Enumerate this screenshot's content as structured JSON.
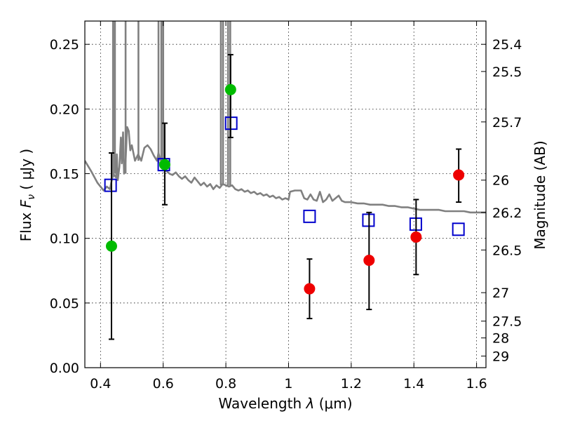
{
  "chart_data": {
    "type": "scatter",
    "xlabel_prefix": "Wavelength",
    "xlabel_var": "λ",
    "xlabel_unit": "(μm)",
    "ylabel_prefix": "Flux",
    "ylabel_var": "F",
    "ylabel_sub": "ν",
    "ylabel_unit": "( μJy )",
    "y2label": "Magnitude (AB)",
    "xlim": [
      0.35,
      1.63
    ],
    "ylim": [
      0.0,
      0.268
    ],
    "grid": true,
    "x_ticks": [
      0.4,
      0.6,
      0.8,
      1.0,
      1.2,
      1.4,
      1.6
    ],
    "x_tick_labels": [
      "0.4",
      "0.6",
      "0.8",
      "1",
      "1.2",
      "1.4",
      "1.6"
    ],
    "y_ticks": [
      0.0,
      0.05,
      0.1,
      0.15,
      0.2,
      0.25
    ],
    "y_tick_labels": [
      "0.00",
      "0.05",
      "0.10",
      "0.15",
      "0.20",
      "0.25"
    ],
    "mag_ticks": [
      {
        "label": "25.4",
        "flux": 0.25
      },
      {
        "label": "25.5",
        "flux": 0.229
      },
      {
        "label": "25.7",
        "flux": 0.19
      },
      {
        "label": "26",
        "flux": 0.145
      },
      {
        "label": "26.2",
        "flux": 0.12
      },
      {
        "label": "26.5",
        "flux": 0.091
      },
      {
        "label": "27",
        "flux": 0.058
      },
      {
        "label": "27.5",
        "flux": 0.036
      },
      {
        "label": "28",
        "flux": 0.023
      },
      {
        "label": "29",
        "flux": 0.009
      }
    ],
    "series": [
      {
        "name": "model spectrum",
        "kind": "line",
        "color": "#808080",
        "points": [
          [
            0.35,
            0.16
          ],
          [
            0.37,
            0.152
          ],
          [
            0.39,
            0.143
          ],
          [
            0.41,
            0.137
          ],
          [
            0.42,
            0.14
          ],
          [
            0.43,
            0.138
          ],
          [
            0.44,
            0.15
          ],
          [
            0.45,
            0.147
          ],
          [
            0.452,
            0.165
          ],
          [
            0.455,
            0.145
          ],
          [
            0.46,
            0.155
          ],
          [
            0.465,
            0.178
          ],
          [
            0.468,
            0.158
          ],
          [
            0.472,
            0.182
          ],
          [
            0.475,
            0.15
          ],
          [
            0.48,
            0.16
          ],
          [
            0.485,
            0.186
          ],
          [
            0.49,
            0.183
          ],
          [
            0.495,
            0.168
          ],
          [
            0.5,
            0.172
          ],
          [
            0.51,
            0.16
          ],
          [
            0.52,
            0.165
          ],
          [
            0.53,
            0.16
          ],
          [
            0.54,
            0.17
          ],
          [
            0.55,
            0.172
          ],
          [
            0.56,
            0.169
          ],
          [
            0.57,
            0.164
          ],
          [
            0.58,
            0.16
          ],
          [
            0.585,
            0.166
          ],
          [
            0.59,
            0.161
          ],
          [
            0.6,
            0.158
          ],
          [
            0.61,
            0.152
          ],
          [
            0.62,
            0.15
          ],
          [
            0.63,
            0.149
          ],
          [
            0.64,
            0.151
          ],
          [
            0.65,
            0.148
          ],
          [
            0.66,
            0.146
          ],
          [
            0.67,
            0.148
          ],
          [
            0.68,
            0.145
          ],
          [
            0.69,
            0.143
          ],
          [
            0.7,
            0.147
          ],
          [
            0.71,
            0.144
          ],
          [
            0.72,
            0.141
          ],
          [
            0.73,
            0.143
          ],
          [
            0.74,
            0.14
          ],
          [
            0.75,
            0.142
          ],
          [
            0.76,
            0.138
          ],
          [
            0.77,
            0.141
          ],
          [
            0.78,
            0.139
          ],
          [
            0.79,
            0.142
          ],
          [
            0.8,
            0.141
          ],
          [
            0.81,
            0.14
          ],
          [
            0.82,
            0.141
          ],
          [
            0.83,
            0.138
          ],
          [
            0.84,
            0.137
          ],
          [
            0.85,
            0.138
          ],
          [
            0.86,
            0.136
          ],
          [
            0.87,
            0.137
          ],
          [
            0.88,
            0.135
          ],
          [
            0.89,
            0.136
          ],
          [
            0.9,
            0.134
          ],
          [
            0.91,
            0.135
          ],
          [
            0.92,
            0.133
          ],
          [
            0.93,
            0.134
          ],
          [
            0.94,
            0.132
          ],
          [
            0.95,
            0.133
          ],
          [
            0.96,
            0.131
          ],
          [
            0.97,
            0.132
          ],
          [
            0.98,
            0.13
          ],
          [
            0.99,
            0.131
          ],
          [
            1.0,
            0.13
          ],
          [
            1.005,
            0.136
          ],
          [
            1.02,
            0.137
          ],
          [
            1.04,
            0.137
          ],
          [
            1.05,
            0.131
          ],
          [
            1.06,
            0.13
          ],
          [
            1.07,
            0.134
          ],
          [
            1.08,
            0.13
          ],
          [
            1.09,
            0.129
          ],
          [
            1.1,
            0.136
          ],
          [
            1.11,
            0.128
          ],
          [
            1.12,
            0.13
          ],
          [
            1.13,
            0.134
          ],
          [
            1.14,
            0.129
          ],
          [
            1.15,
            0.131
          ],
          [
            1.16,
            0.133
          ],
          [
            1.17,
            0.129
          ],
          [
            1.18,
            0.128
          ],
          [
            1.2,
            0.128
          ],
          [
            1.22,
            0.127
          ],
          [
            1.24,
            0.127
          ],
          [
            1.26,
            0.126
          ],
          [
            1.28,
            0.126
          ],
          [
            1.3,
            0.126
          ],
          [
            1.32,
            0.125
          ],
          [
            1.34,
            0.125
          ],
          [
            1.36,
            0.124
          ],
          [
            1.38,
            0.124
          ],
          [
            1.4,
            0.123
          ],
          [
            1.42,
            0.122
          ],
          [
            1.44,
            0.122
          ],
          [
            1.46,
            0.122
          ],
          [
            1.48,
            0.122
          ],
          [
            1.5,
            0.121
          ],
          [
            1.52,
            0.121
          ],
          [
            1.54,
            0.121
          ],
          [
            1.56,
            0.121
          ],
          [
            1.58,
            0.12
          ],
          [
            1.6,
            0.12
          ],
          [
            1.63,
            0.12
          ]
        ]
      },
      {
        "name": "model emission lines",
        "kind": "vlines",
        "color": "#808080",
        "lines": [
          {
            "x": 0.44,
            "y0": 0.147,
            "y1": 0.268
          },
          {
            "x": 0.446,
            "y0": 0.15,
            "y1": 0.268
          },
          {
            "x": 0.48,
            "y0": 0.15,
            "y1": 0.268
          },
          {
            "x": 0.521,
            "y0": 0.16,
            "y1": 0.268
          },
          {
            "x": 0.585,
            "y0": 0.158,
            "y1": 0.268
          },
          {
            "x": 0.594,
            "y0": 0.158,
            "y1": 0.268
          },
          {
            "x": 0.6,
            "y0": 0.157,
            "y1": 0.268
          },
          {
            "x": 0.784,
            "y0": 0.141,
            "y1": 0.268
          },
          {
            "x": 0.791,
            "y0": 0.141,
            "y1": 0.268
          },
          {
            "x": 0.807,
            "y0": 0.141,
            "y1": 0.268
          },
          {
            "x": 0.814,
            "y0": 0.141,
            "y1": 0.268
          }
        ]
      },
      {
        "name": "model photometry",
        "kind": "open-square",
        "color": "#0000cc",
        "x": [
          0.432,
          0.602,
          0.817,
          1.067,
          1.255,
          1.406,
          1.542
        ],
        "y": [
          0.141,
          0.157,
          0.189,
          0.117,
          0.114,
          0.111,
          0.107
        ]
      },
      {
        "name": "green measurements",
        "kind": "point",
        "color": "#00bb00",
        "x": [
          0.435,
          0.605,
          0.815
        ],
        "y": [
          0.094,
          0.157,
          0.215
        ],
        "err_low": [
          0.072,
          0.031,
          0.037
        ],
        "err_high": [
          0.072,
          0.032,
          0.027
        ]
      },
      {
        "name": "red measurements",
        "kind": "point",
        "color": "#ee0000",
        "x": [
          1.067,
          1.257,
          1.407,
          1.543
        ],
        "y": [
          0.061,
          0.083,
          0.101,
          0.149
        ],
        "err_low": [
          0.023,
          0.038,
          0.029,
          0.021
        ],
        "err_high": [
          0.023,
          0.037,
          0.029,
          0.02
        ]
      }
    ]
  }
}
